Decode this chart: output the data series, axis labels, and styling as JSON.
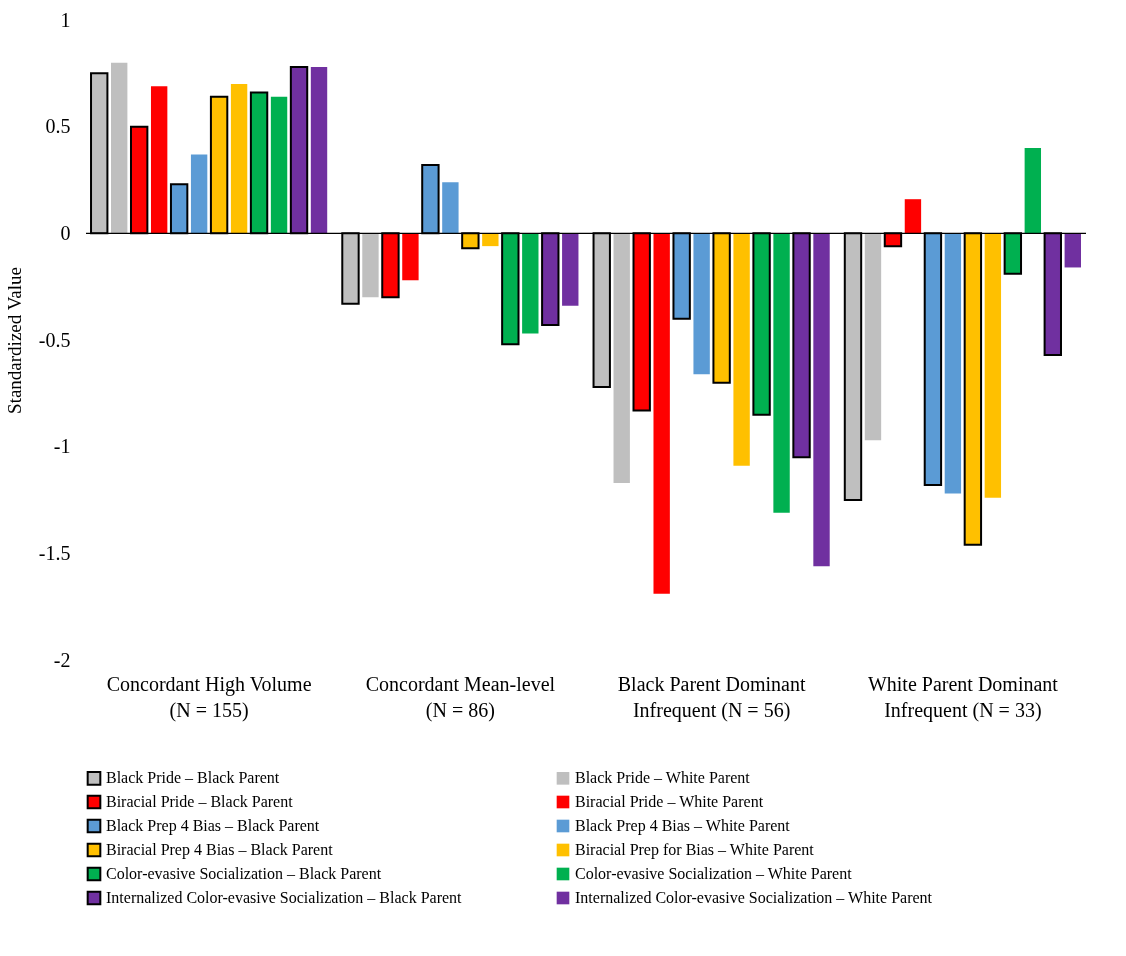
{
  "chart_data": {
    "type": "bar",
    "ylabel": "Standardized Value",
    "categories": [
      "Concordant High Volume (N = 155)",
      "Concordant Mean-level (N = 86)",
      "Black Parent Dominant Infrequent (N = 56)",
      "White Parent Dominant Infrequent (N = 33)"
    ],
    "series": [
      {
        "name": "Black Pride – Black Parent",
        "color": "#bfbfbf",
        "values": [
          0.75,
          -0.33,
          -0.72,
          -1.25
        ]
      },
      {
        "name": "Black Pride – White Parent",
        "color": "#bfbfbf",
        "values": [
          0.8,
          -0.3,
          -1.17,
          -0.97
        ]
      },
      {
        "name": "Biracial Pride – Black Parent",
        "color": "#ff0000",
        "values": [
          0.5,
          -0.3,
          -0.83,
          -0.06
        ]
      },
      {
        "name": "Biracial Pride – White Parent",
        "color": "#ff0000",
        "values": [
          0.69,
          -0.22,
          -1.69,
          0.16
        ]
      },
      {
        "name": "Black Prep 4 Bias – Black Parent",
        "color": "#5b9bd5",
        "values": [
          0.23,
          0.32,
          -0.4,
          -1.18
        ]
      },
      {
        "name": "Black Prep 4 Bias – White Parent",
        "color": "#5b9bd5",
        "values": [
          0.37,
          0.24,
          -0.66,
          -1.22
        ]
      },
      {
        "name": "Biracial Prep 4 Bias – Black Parent",
        "color": "#ffc000",
        "values": [
          0.64,
          -0.07,
          -0.7,
          -1.46
        ]
      },
      {
        "name": "Biracial Prep for Bias – White Parent",
        "color": "#ffc000",
        "values": [
          0.7,
          -0.06,
          -1.09,
          -1.24
        ]
      },
      {
        "name": "Color-evasive Socialization – Black Parent",
        "color": "#00b050",
        "values": [
          0.66,
          -0.52,
          -0.85,
          -0.19
        ]
      },
      {
        "name": "Color-evasive Socialization – White Parent",
        "color": "#00b050",
        "values": [
          0.64,
          -0.47,
          -1.31,
          0.4
        ]
      },
      {
        "name": "Internalized Color-evasive Socialization – Black Parent",
        "color": "#7030a0",
        "values": [
          0.78,
          -0.43,
          -1.05,
          -0.57
        ]
      },
      {
        "name": "Internalized Color-evasive Socialization – White Parent",
        "color": "#7030a0",
        "values": [
          0.78,
          -0.34,
          -1.56,
          -0.16
        ]
      }
    ],
    "ylim": [
      -2,
      1
    ],
    "yticks": [
      -2,
      -1.5,
      -1,
      -0.5,
      0,
      0.5,
      1
    ],
    "ref_lines": [
      {
        "axis": "y",
        "value": 0,
        "color": "#000000"
      }
    ],
    "grid": false,
    "legend": "bottom"
  }
}
